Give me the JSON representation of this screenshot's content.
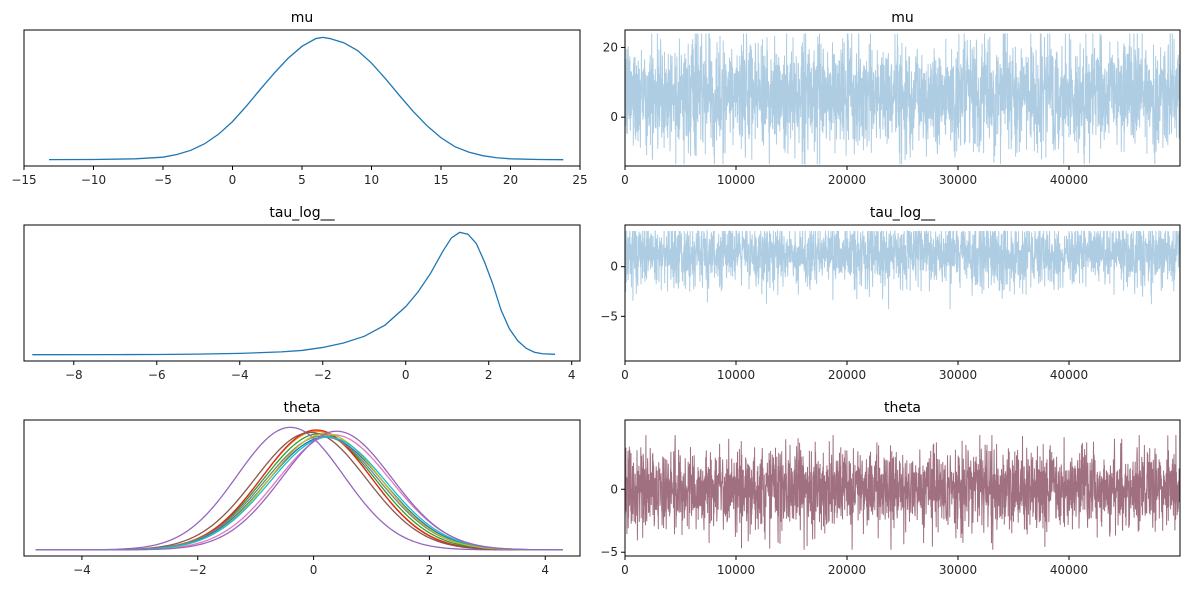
{
  "chart_data": [
    {
      "type": "line",
      "panel": "kde",
      "title": "mu",
      "xlim": [
        -15,
        25
      ],
      "xticks": [
        -15,
        -10,
        -5,
        0,
        5,
        10,
        15,
        20,
        25
      ],
      "yticks": [],
      "series": [
        {
          "color": "#1f77b4",
          "points": [
            [
              -13.2,
              0.0004
            ],
            [
              -10,
              0.0006
            ],
            [
              -7,
              0.0018
            ],
            [
              -5,
              0.0045
            ],
            [
              -4,
              0.009
            ],
            [
              -3,
              0.016
            ],
            [
              -2,
              0.027
            ],
            [
              -1,
              0.043
            ],
            [
              0,
              0.064
            ],
            [
              1,
              0.09
            ],
            [
              2,
              0.118
            ],
            [
              3,
              0.145
            ],
            [
              4,
              0.17
            ],
            [
              5,
              0.19
            ],
            [
              6,
              0.203
            ],
            [
              6.5,
              0.205
            ],
            [
              7,
              0.203
            ],
            [
              8,
              0.196
            ],
            [
              9,
              0.183
            ],
            [
              10,
              0.162
            ],
            [
              11,
              0.136
            ],
            [
              12,
              0.108
            ],
            [
              13,
              0.081
            ],
            [
              14,
              0.057
            ],
            [
              15,
              0.037
            ],
            [
              16,
              0.022
            ],
            [
              17,
              0.013
            ],
            [
              18,
              0.007
            ],
            [
              19,
              0.0035
            ],
            [
              20,
              0.0018
            ],
            [
              22,
              0.0006
            ],
            [
              23.8,
              0.0003
            ]
          ]
        }
      ]
    },
    {
      "type": "line",
      "panel": "trace",
      "title": "mu",
      "xlim": [
        0,
        50000
      ],
      "ylim": [
        -14,
        25
      ],
      "xticks": [
        0,
        10000,
        20000,
        30000,
        40000
      ],
      "yticks": [
        0,
        20
      ],
      "series": [
        {
          "color": "#aecde3",
          "center": 6.5,
          "spread": 5.0,
          "min": -13.5,
          "max": 24
        }
      ]
    },
    {
      "type": "line",
      "panel": "kde",
      "title": "tau_log__",
      "xlim": [
        -9.2,
        4.2
      ],
      "xticks": [
        -8,
        -6,
        -4,
        -2,
        0,
        2,
        4
      ],
      "yticks": [],
      "series": [
        {
          "color": "#1f77b4",
          "points": [
            [
              -9,
              0.0005
            ],
            [
              -7,
              0.0007
            ],
            [
              -6,
              0.001
            ],
            [
              -5,
              0.002
            ],
            [
              -4,
              0.004
            ],
            [
              -3,
              0.008
            ],
            [
              -2.5,
              0.012
            ],
            [
              -2,
              0.02
            ],
            [
              -1.5,
              0.032
            ],
            [
              -1,
              0.05
            ],
            [
              -0.5,
              0.08
            ],
            [
              0,
              0.13
            ],
            [
              0.3,
              0.17
            ],
            [
              0.6,
              0.22
            ],
            [
              0.9,
              0.28
            ],
            [
              1.1,
              0.315
            ],
            [
              1.3,
              0.33
            ],
            [
              1.5,
              0.325
            ],
            [
              1.7,
              0.3
            ],
            [
              1.9,
              0.25
            ],
            [
              2.1,
              0.19
            ],
            [
              2.3,
              0.12
            ],
            [
              2.5,
              0.07
            ],
            [
              2.7,
              0.038
            ],
            [
              2.9,
              0.018
            ],
            [
              3.1,
              0.007
            ],
            [
              3.3,
              0.003
            ],
            [
              3.6,
              0.0015
            ]
          ]
        }
      ]
    },
    {
      "type": "line",
      "panel": "trace",
      "title": "tau_log__",
      "xlim": [
        0,
        50000
      ],
      "ylim": [
        -9.5,
        4.2
      ],
      "xticks": [
        0,
        10000,
        20000,
        30000,
        40000
      ],
      "yticks": [
        -5,
        0
      ],
      "series": [
        {
          "color": "#aecde3",
          "center": 1.2,
          "spread": 1.0,
          "min": -8.8,
          "max": 3.6
        }
      ]
    },
    {
      "type": "line",
      "panel": "kde",
      "title": "theta",
      "xlim": [
        -5.0,
        4.6
      ],
      "xticks": [
        -4,
        -2,
        0,
        2,
        4
      ],
      "yticks": [],
      "series": [
        {
          "color": "#1f77b4",
          "mean": 0.2,
          "sd": 1.0
        },
        {
          "color": "#ff7f0e",
          "mean": 0.05,
          "sd": 0.95
        },
        {
          "color": "#2ca02c",
          "mean": 0.1,
          "sd": 0.97
        },
        {
          "color": "#d62728",
          "mean": 0.05,
          "sd": 0.94
        },
        {
          "color": "#9467bd",
          "mean": -0.4,
          "sd": 0.92
        },
        {
          "color": "#8c564b",
          "mean": -0.05,
          "sd": 0.96
        },
        {
          "color": "#e377c2",
          "mean": 0.35,
          "sd": 0.98
        },
        {
          "color": "#7f7f7f",
          "mean": 0.15,
          "sd": 0.99
        },
        {
          "color": "#bcbd22",
          "mean": 0.2,
          "sd": 0.97
        },
        {
          "color": "#17becf",
          "mean": 0.25,
          "sd": 1.0
        },
        {
          "color": "#9467bd",
          "mean": 0.4,
          "sd": 0.95
        }
      ]
    },
    {
      "type": "line",
      "panel": "trace",
      "title": "theta",
      "xlim": [
        0,
        50000
      ],
      "ylim": [
        -5.3,
        5.5
      ],
      "xticks": [
        0,
        10000,
        20000,
        30000,
        40000
      ],
      "yticks": [
        -5,
        0
      ],
      "series": [
        {
          "color": "#a07080",
          "center": 0,
          "spread": 1.0,
          "min": -4.8,
          "max": 4.3
        }
      ]
    }
  ]
}
